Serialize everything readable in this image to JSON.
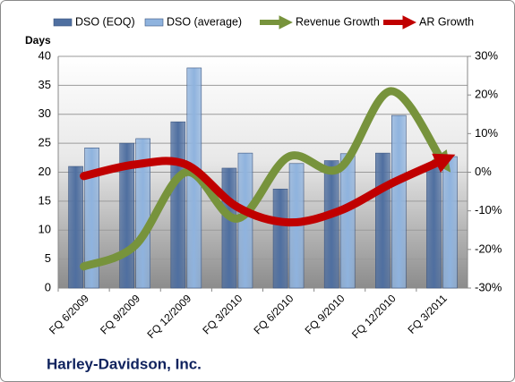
{
  "chart_data": {
    "type": "bar_line",
    "title": "Harley-Davidson, Inc.",
    "y_axis_label": "Days",
    "categories": [
      "FQ 6/2009",
      "FQ 9/2009",
      "FQ 12/2009",
      "FQ 3/2010",
      "FQ 6/2010",
      "FQ 9/2010",
      "FQ 12/2010",
      "FQ 3/2011"
    ],
    "series": [
      {
        "name": "DSO (EOQ)",
        "color": "#4f6fa0",
        "kind": "bar",
        "values": [
          21,
          25,
          28.7,
          20.7,
          17.1,
          22,
          23.3,
          21
        ]
      },
      {
        "name": "DSO (average)",
        "color": "#8fb3de",
        "kind": "bar",
        "values": [
          24.2,
          25.8,
          38,
          23.3,
          21.5,
          23.2,
          29.8,
          22.7
        ]
      },
      {
        "name": "Revenue Growth",
        "color": "#77933c",
        "kind": "line",
        "axis": "y2",
        "values": [
          -24.4,
          -19,
          0,
          -12,
          4,
          1,
          21,
          3
        ]
      },
      {
        "name": "AR Growth",
        "color": "#c00000",
        "kind": "line",
        "axis": "y2",
        "values": [
          -1,
          2,
          2,
          -9,
          -13,
          -10,
          -3,
          3
        ]
      }
    ],
    "ylim": [
      0,
      40
    ],
    "yticks": [
      0,
      5,
      10,
      15,
      20,
      25,
      30,
      35,
      40
    ],
    "y2lim": [
      -30,
      30
    ],
    "y2ticks": [
      {
        "value": -30,
        "label": "-30%"
      },
      {
        "value": -20,
        "label": "-20%"
      },
      {
        "value": -10,
        "label": "-10%"
      },
      {
        "value": 0,
        "label": "0%"
      },
      {
        "value": 10,
        "label": "10%"
      },
      {
        "value": 20,
        "label": "20%"
      },
      {
        "value": 30,
        "label": "30%"
      }
    ],
    "grid": true
  }
}
